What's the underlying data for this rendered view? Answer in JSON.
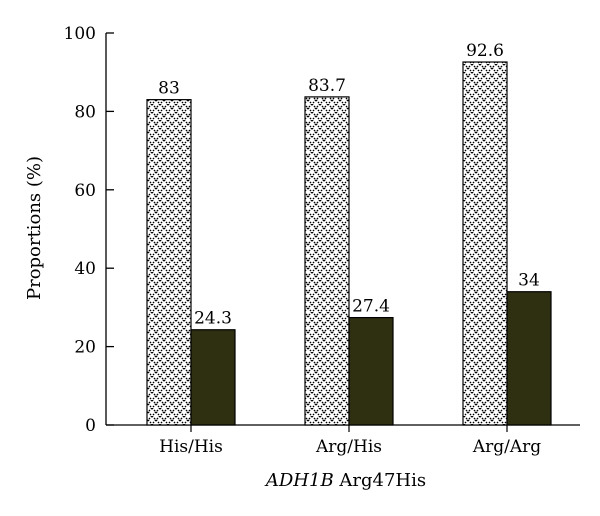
{
  "chart_data": {
    "type": "bar",
    "categories": [
      "His/His",
      "Arg/His",
      "Arg/Arg"
    ],
    "series": [
      {
        "values": [
          83,
          83.7,
          92.6
        ],
        "fill": "crosshatch-pattern",
        "color": "#000000"
      },
      {
        "values": [
          24.3,
          27.4,
          34
        ],
        "fill": "solid",
        "color": "#2f2f12"
      }
    ],
    "value_labels": [
      [
        "83",
        "83.7",
        "92.6"
      ],
      [
        "24.3",
        "27.4",
        "34"
      ]
    ],
    "ylabel": "Proportions (%)",
    "xlabel": {
      "italic": "ADH1B",
      "rest": " Arg47His"
    },
    "ylim": [
      0,
      100
    ],
    "yticks": [
      0,
      20,
      40,
      60,
      80,
      100
    ],
    "grid": false,
    "legend": "none"
  }
}
